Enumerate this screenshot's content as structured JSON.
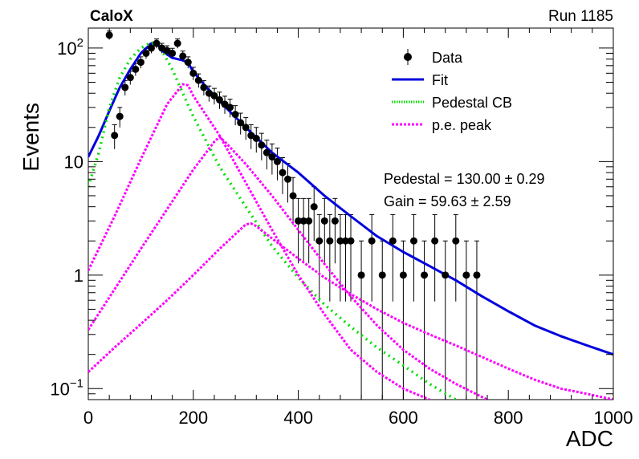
{
  "header": {
    "experiment": "CaloX",
    "run": "Run 1185"
  },
  "chart_data": {
    "type": "scatter",
    "xlabel": "ADC",
    "ylabel": "Events",
    "xlim": [
      0,
      1000
    ],
    "ylim": [
      0.08,
      150
    ],
    "yscale": "log",
    "x_ticks": [
      "0",
      "200",
      "400",
      "600",
      "800",
      "1000"
    ],
    "y_ticks": [
      {
        "value": 0.1,
        "base": "10",
        "exp": "−1"
      },
      {
        "value": 1,
        "label": "1"
      },
      {
        "value": 10,
        "label": "10"
      },
      {
        "value": 100,
        "base": "10",
        "exp": "2"
      }
    ],
    "legend": {
      "placement": "top-right",
      "entries": [
        {
          "label": "Data",
          "style": "marker"
        },
        {
          "label": "Fit",
          "style": "line",
          "color": "#0000dd"
        },
        {
          "label": "Pedestal CB",
          "style": "dotted",
          "color": "#00dd00"
        },
        {
          "label": "p.e. peak",
          "style": "dashed",
          "color": "#ff00ff"
        }
      ]
    },
    "fit_results": [
      "Pedestal = 130.00 ± 0.29",
      "Gain = 59.63 ± 2.59"
    ],
    "series": [
      {
        "name": "Data",
        "kind": "points",
        "color": "#000000",
        "x": [
          40,
          50,
          60,
          70,
          80,
          90,
          100,
          110,
          120,
          130,
          140,
          150,
          160,
          170,
          180,
          190,
          200,
          210,
          220,
          230,
          240,
          250,
          260,
          270,
          280,
          290,
          300,
          310,
          320,
          330,
          340,
          350,
          360,
          370,
          380,
          390,
          400,
          410,
          420,
          430,
          440,
          450,
          460,
          470,
          480,
          490,
          500,
          520,
          540,
          560,
          580,
          600,
          620,
          640,
          660,
          680,
          700,
          720,
          740
        ],
        "y": [
          130,
          17,
          25,
          45,
          55,
          65,
          75,
          90,
          100,
          110,
          100,
          95,
          90,
          110,
          85,
          75,
          60,
          52,
          45,
          40,
          38,
          35,
          32,
          30,
          26,
          22,
          20,
          17,
          16,
          14,
          12,
          11,
          10,
          8,
          7,
          5,
          3,
          3,
          3,
          4,
          2,
          3,
          2,
          3,
          2,
          2,
          2,
          1,
          2,
          1,
          2,
          1,
          2,
          1,
          2,
          1,
          2,
          1,
          1
        ]
      },
      {
        "name": "Fit",
        "kind": "line",
        "color": "#0000dd",
        "x": [
          0,
          20,
          40,
          60,
          80,
          100,
          120,
          130,
          140,
          160,
          180,
          190,
          200,
          220,
          250,
          300,
          350,
          400,
          450,
          500,
          550,
          600,
          650,
          700,
          750,
          800,
          850,
          900,
          950,
          1000
        ],
        "y": [
          11,
          17,
          28,
          45,
          65,
          90,
          110,
          112,
          95,
          82,
          78,
          74,
          62,
          48,
          34,
          20,
          12,
          8,
          5,
          3.3,
          2.2,
          1.6,
          1.2,
          0.9,
          0.65,
          0.48,
          0.36,
          0.29,
          0.24,
          0.2
        ]
      },
      {
        "name": "Pedestal CB",
        "kind": "dotted",
        "color": "#00dd00",
        "x": [
          0,
          20,
          40,
          60,
          80,
          100,
          120,
          130,
          140,
          160,
          180,
          200,
          250,
          300,
          350,
          400,
          450,
          500,
          550,
          600,
          650,
          700
        ],
        "y": [
          6,
          12,
          30,
          55,
          80,
          100,
          112,
          110,
          95,
          65,
          40,
          25,
          9,
          4,
          1.8,
          0.95,
          0.55,
          0.35,
          0.23,
          0.16,
          0.11,
          0.08
        ]
      },
      {
        "name": "p.e. peak (1)",
        "kind": "dashed",
        "color": "#ff00ff",
        "x": [
          0,
          50,
          100,
          150,
          180,
          190,
          200,
          250,
          300,
          350,
          400,
          450,
          500,
          550,
          600,
          650
        ],
        "y": [
          1.1,
          3.3,
          10.5,
          32,
          48,
          47,
          38,
          17,
          6.5,
          2.5,
          1.0,
          0.45,
          0.22,
          0.14,
          0.1,
          0.08
        ]
      },
      {
        "name": "p.e. peak (2)",
        "kind": "dashed",
        "color": "#ff00ff",
        "x": [
          0,
          50,
          100,
          150,
          200,
          240,
          250,
          260,
          300,
          350,
          400,
          450,
          500,
          550,
          600,
          650,
          700,
          760
        ],
        "y": [
          0.33,
          0.75,
          1.7,
          3.8,
          8.5,
          15,
          16.5,
          15,
          9.5,
          5,
          2.5,
          1.25,
          0.65,
          0.36,
          0.22,
          0.15,
          0.11,
          0.08
        ]
      },
      {
        "name": "p.e. peak (3)",
        "kind": "dashed",
        "color": "#ff00ff",
        "x": [
          0,
          50,
          100,
          150,
          200,
          250,
          300,
          310,
          320,
          350,
          400,
          450,
          500,
          550,
          600,
          650,
          700,
          750,
          800,
          850,
          900,
          950,
          1000
        ],
        "y": [
          0.14,
          0.23,
          0.37,
          0.6,
          1.0,
          1.7,
          2.8,
          2.85,
          2.7,
          2.1,
          1.4,
          0.95,
          0.68,
          0.5,
          0.38,
          0.3,
          0.24,
          0.19,
          0.15,
          0.12,
          0.1,
          0.09,
          0.08
        ]
      }
    ]
  }
}
